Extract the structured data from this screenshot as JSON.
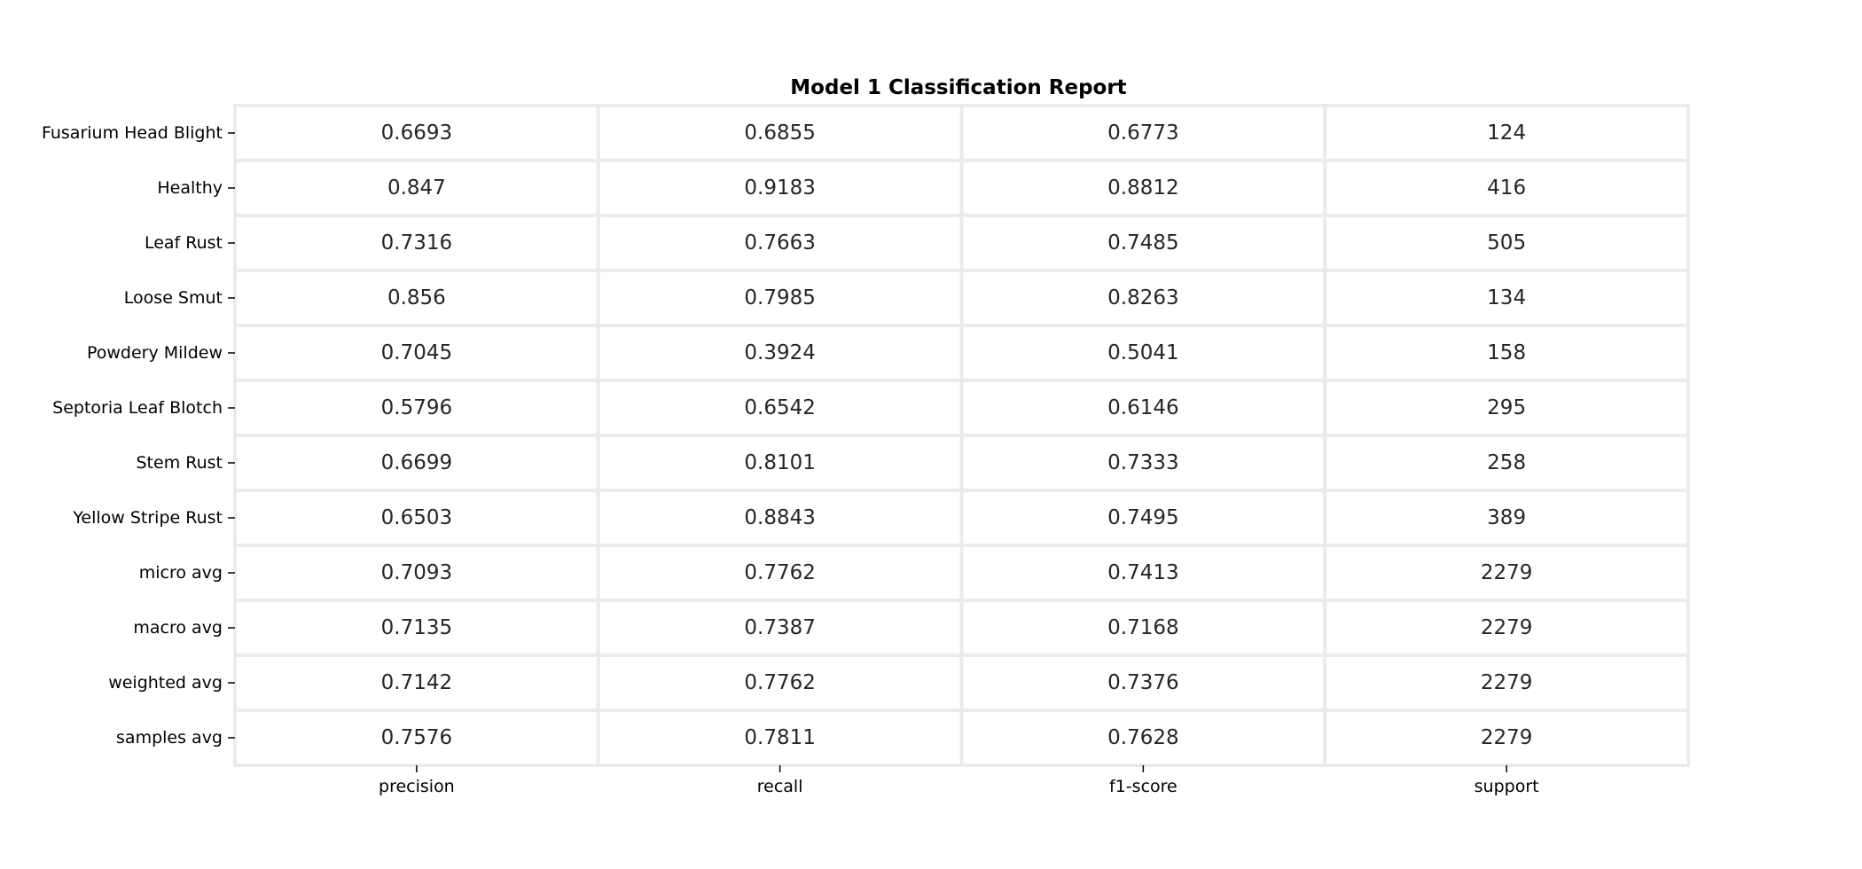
{
  "chart_data": {
    "type": "table",
    "title": "Model 1 Classification Report",
    "columns": [
      "precision",
      "recall",
      "f1-score",
      "support"
    ],
    "rows": [
      "Fusarium Head Blight",
      "Healthy",
      "Leaf Rust",
      "Loose Smut",
      "Powdery Mildew",
      "Septoria Leaf Blotch",
      "Stem Rust",
      "Yellow Stripe Rust",
      "micro avg",
      "macro avg",
      "weighted avg",
      "samples avg"
    ],
    "values": [
      [
        "0.6693",
        "0.6855",
        "0.6773",
        "124"
      ],
      [
        "0.847",
        "0.9183",
        "0.8812",
        "416"
      ],
      [
        "0.7316",
        "0.7663",
        "0.7485",
        "505"
      ],
      [
        "0.856",
        "0.7985",
        "0.8263",
        "134"
      ],
      [
        "0.7045",
        "0.3924",
        "0.5041",
        "158"
      ],
      [
        "0.5796",
        "0.6542",
        "0.6146",
        "295"
      ],
      [
        "0.6699",
        "0.8101",
        "0.7333",
        "258"
      ],
      [
        "0.6503",
        "0.8843",
        "0.7495",
        "389"
      ],
      [
        "0.7093",
        "0.7762",
        "0.7413",
        "2279"
      ],
      [
        "0.7135",
        "0.7387",
        "0.7168",
        "2279"
      ],
      [
        "0.7142",
        "0.7762",
        "0.7376",
        "2279"
      ],
      [
        "0.7576",
        "0.7811",
        "0.7628",
        "2279"
      ]
    ],
    "colors": {
      "cell_fill": "#ffffff",
      "cell_border": "#ebebeb",
      "text": "#262626",
      "label": "#000000",
      "tick": "#000000"
    }
  }
}
